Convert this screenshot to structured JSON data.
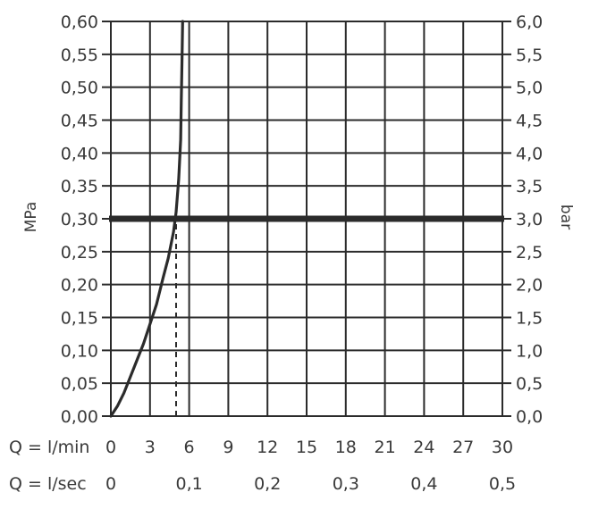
{
  "chart_data": {
    "type": "line",
    "ylabel_left": "MPa",
    "ylabel_right": "bar",
    "xlabel_lmin": "Q = l/min",
    "xlabel_lsec": "Q = l/sec",
    "xlim": [
      0,
      30
    ],
    "ylim": [
      0,
      0.6
    ],
    "grid": true,
    "y_ticks_left": [
      "0,00",
      "0,05",
      "0,10",
      "0,15",
      "0,20",
      "0,25",
      "0,30",
      "0,35",
      "0,40",
      "0,45",
      "0,50",
      "0,55",
      "0,60"
    ],
    "y_ticks_right": [
      "0,0",
      "0,5",
      "1,0",
      "1,5",
      "2,0",
      "2,5",
      "3,0",
      "3,5",
      "4,0",
      "4,5",
      "5,0",
      "5,5",
      "6,0"
    ],
    "x_ticks_lmin": [
      "0",
      "3",
      "6",
      "9",
      "12",
      "15",
      "18",
      "21",
      "24",
      "27",
      "30"
    ],
    "x_ticks_lsec": [
      {
        "x": 0,
        "label": "0"
      },
      {
        "x": 6,
        "label": "0,1"
      },
      {
        "x": 12,
        "label": "0,2"
      },
      {
        "x": 18,
        "label": "0,3"
      },
      {
        "x": 24,
        "label": "0,4"
      },
      {
        "x": 30,
        "label": "0,5"
      }
    ],
    "series": [
      {
        "x": [
          0,
          0.5,
          1.0,
          1.5,
          2.0,
          2.5,
          3.0,
          3.5,
          4.0,
          4.4,
          4.8,
          5.0,
          5.2,
          5.35,
          5.4,
          5.45,
          5.5
        ],
        "y": [
          0,
          0.015,
          0.035,
          0.06,
          0.085,
          0.11,
          0.14,
          0.17,
          0.21,
          0.24,
          0.28,
          0.31,
          0.36,
          0.42,
          0.48,
          0.54,
          0.6
        ]
      }
    ],
    "reference_line_y": 0.3,
    "dashed_marker": {
      "x": 5.0,
      "y_from": 0,
      "y_to": 0.3
    }
  }
}
